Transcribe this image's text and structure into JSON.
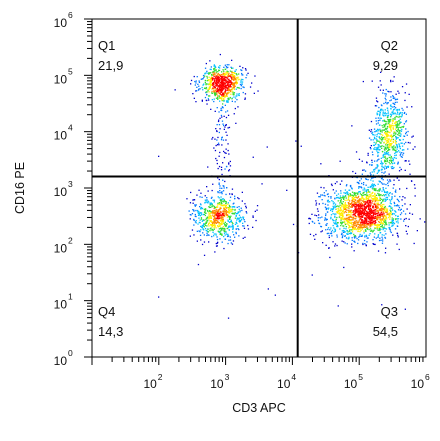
{
  "chart_data": {
    "type": "scatter",
    "title": "",
    "xlabel": "CD3 APC",
    "ylabel": "CD16 PE",
    "x_scale": "log",
    "y_scale": "log",
    "xlim": [
      10,
      1000000
    ],
    "ylim": [
      1,
      1000000
    ],
    "x_ticks": [
      {
        "base": "10",
        "exp": "2",
        "value": 100
      },
      {
        "base": "10",
        "exp": "3",
        "value": 1000
      },
      {
        "base": "10",
        "exp": "4",
        "value": 10000
      },
      {
        "base": "10",
        "exp": "5",
        "value": 100000
      },
      {
        "base": "10",
        "exp": "6",
        "value": 1000000
      }
    ],
    "y_ticks": [
      {
        "base": "10",
        "exp": "0",
        "value": 1
      },
      {
        "base": "10",
        "exp": "1",
        "value": 10
      },
      {
        "base": "10",
        "exp": "2",
        "value": 100
      },
      {
        "base": "10",
        "exp": "3",
        "value": 1000
      },
      {
        "base": "10",
        "exp": "4",
        "value": 10000
      },
      {
        "base": "10",
        "exp": "5",
        "value": 100000
      },
      {
        "base": "10",
        "exp": "6",
        "value": 1000000
      }
    ],
    "quadrant_gates": {
      "x": 12000,
      "y": 1600
    },
    "quadrants": [
      {
        "name": "Q1",
        "value": "21,9",
        "position": "top-left"
      },
      {
        "name": "Q2",
        "value": "9,29",
        "position": "top-right"
      },
      {
        "name": "Q3",
        "value": "54,5",
        "position": "bottom-right"
      },
      {
        "name": "Q4",
        "value": "14,3",
        "position": "bottom-left"
      }
    ],
    "populations": [
      {
        "quadrant": "Q1",
        "center_x": 900,
        "center_y": 70000
      },
      {
        "quadrant": "Q4",
        "center_x": 800,
        "center_y": 300
      },
      {
        "quadrant": "Q3",
        "center_x": 110000,
        "center_y": 350
      },
      {
        "quadrant": "Q2",
        "center_x": 300000,
        "center_y": 10000
      }
    ],
    "color_scale": [
      "#0000cc",
      "#0077ff",
      "#00c0ff",
      "#33dd33",
      "#ffee00",
      "#ff8800",
      "#ff0000"
    ],
    "grid": false,
    "legend": "none"
  }
}
